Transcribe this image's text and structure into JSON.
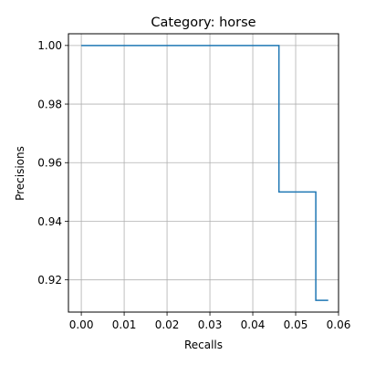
{
  "chart_data": {
    "type": "line",
    "title": "Category: horse",
    "xlabel": "Recalls",
    "ylabel": "Precisions",
    "xlim": [
      -0.003,
      0.06
    ],
    "ylim": [
      0.909,
      1.004
    ],
    "xticks": [
      0.0,
      0.01,
      0.02,
      0.03,
      0.04,
      0.05,
      0.06
    ],
    "xtick_labels": [
      "0.00",
      "0.01",
      "0.02",
      "0.03",
      "0.04",
      "0.05",
      "0.06"
    ],
    "yticks": [
      0.92,
      0.94,
      0.96,
      0.98,
      1.0
    ],
    "ytick_labels": [
      "0.92",
      "0.94",
      "0.96",
      "0.98",
      "1.00"
    ],
    "grid": true,
    "line_color": "#1f77b4",
    "series": [
      {
        "x": [
          0.0,
          0.0461,
          0.0461,
          0.0547,
          0.0547,
          0.0576
        ],
        "y": [
          1.0,
          1.0,
          0.95,
          0.95,
          0.913,
          0.913
        ]
      }
    ]
  }
}
